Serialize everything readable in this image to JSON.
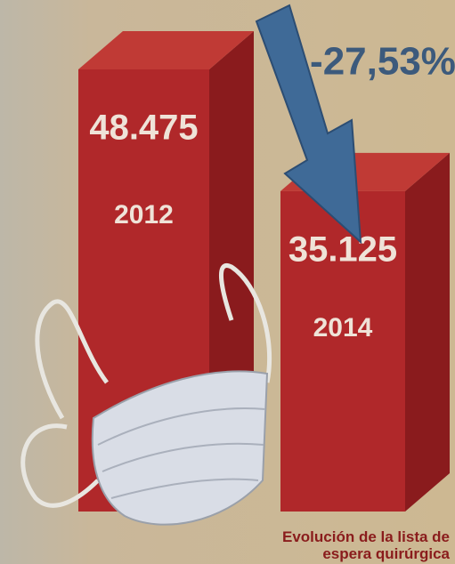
{
  "chart_data": {
    "type": "bar3d",
    "categories": [
      "2012",
      "2014"
    ],
    "values": [
      48475,
      35125
    ],
    "value_labels": [
      "48.475",
      "35.125"
    ],
    "color": "#b0282a",
    "annotation": "-27,53%",
    "caption": "Evolución de la lista de espera quirúrgica"
  }
}
